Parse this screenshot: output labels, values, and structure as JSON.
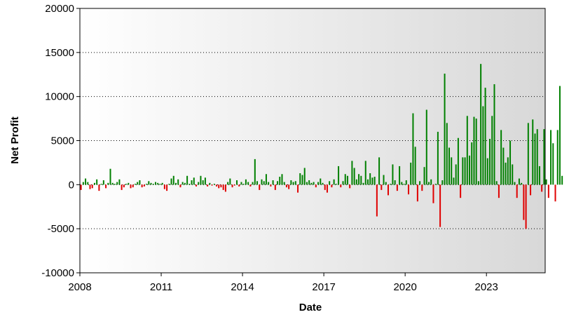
{
  "chart_data": {
    "type": "bar",
    "title": "",
    "xlabel": "Date",
    "ylabel": "Net Profit",
    "ylim": [
      -10000,
      20000
    ],
    "xlim": [
      "2008-01",
      "2025-03"
    ],
    "y_ticks": [
      -10000,
      -5000,
      0,
      5000,
      10000,
      15000,
      20000
    ],
    "y_tick_labels": [
      "-10000",
      "-5000",
      "0",
      "5000",
      "10000",
      "15000",
      "20000"
    ],
    "x_ticks": [
      "2008-01",
      "2011-01",
      "2014-01",
      "2017-01",
      "2020-01",
      "2023-01"
    ],
    "x_tick_labels": [
      "2008",
      "2011",
      "2014",
      "2017",
      "2020",
      "2023"
    ],
    "grid": "horizontal dotted",
    "colors": {
      "positive": "#008000",
      "negative": "#e00000",
      "plot_bg_start": "#ffffff",
      "plot_bg_end": "#d8d8d8",
      "grid": "#000000"
    },
    "bar_series": {
      "frequency": "monthly",
      "start": "2008-01",
      "values": [
        -600,
        300,
        700,
        300,
        -500,
        -400,
        200,
        600,
        -700,
        100,
        500,
        -400,
        200,
        1800,
        200,
        100,
        300,
        600,
        -600,
        -300,
        100,
        200,
        -400,
        -300,
        100,
        300,
        500,
        -300,
        -200,
        100,
        400,
        200,
        100,
        300,
        200,
        100,
        200,
        -500,
        -700,
        100,
        700,
        1000,
        200,
        600,
        -300,
        300,
        200,
        1000,
        100,
        500,
        800,
        -200,
        300,
        1000,
        500,
        800,
        -200,
        200,
        -100,
        100,
        -200,
        -400,
        -300,
        -600,
        -800,
        300,
        700,
        -300,
        -100,
        500,
        -200,
        300,
        100,
        600,
        300,
        -200,
        300,
        2900,
        400,
        -600,
        600,
        400,
        1200,
        300,
        -200,
        500,
        -600,
        400,
        900,
        1200,
        300,
        -300,
        -500,
        500,
        300,
        400,
        -900,
        1300,
        1100,
        1900,
        300,
        500,
        200,
        300,
        -300,
        300,
        700,
        200,
        -600,
        -900,
        400,
        -300,
        600,
        100,
        2100,
        -300,
        400,
        1200,
        1000,
        -400,
        2700,
        1900,
        600,
        1200,
        1000,
        200,
        2700,
        600,
        1300,
        800,
        900,
        -3600,
        3100,
        -600,
        1100,
        300,
        -1200,
        100,
        2300,
        500,
        -700,
        2100,
        300,
        100,
        500,
        -1100,
        2500,
        8100,
        4300,
        -1900,
        400,
        -700,
        2000,
        8500,
        300,
        600,
        -2100,
        100,
        6000,
        -4800,
        500,
        12600,
        7000,
        4200,
        3100,
        800,
        2300,
        5300,
        -1500,
        3100,
        3100,
        7800,
        3300,
        4800,
        7700,
        7500,
        400,
        13700,
        8900,
        11000,
        3000,
        5200,
        7800,
        11400,
        400,
        -1500,
        6200,
        4200,
        2500,
        3100,
        5000,
        2300,
        300,
        -1500,
        700,
        200,
        -4000,
        -5000,
        7000,
        -1200,
        7400,
        5800,
        6300,
        2100,
        -800,
        6300,
        600,
        -1500,
        6200,
        4700,
        -1900,
        6200,
        11200,
        1000
      ]
    }
  }
}
